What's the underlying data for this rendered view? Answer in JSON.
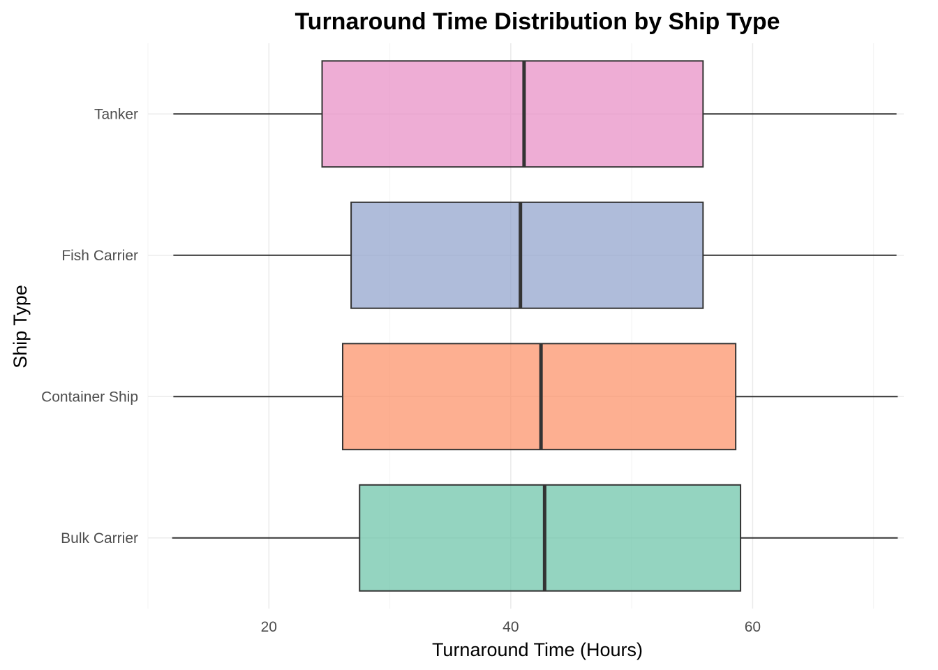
{
  "chart_data": {
    "type": "boxplot",
    "orientation": "horizontal",
    "title": "Turnaround Time Distribution by Ship Type",
    "xlabel": "Turnaround Time (Hours)",
    "ylabel": "Ship Type",
    "xlim": [
      10,
      72.5
    ],
    "x_ticks": [
      20,
      40,
      60
    ],
    "grid": true,
    "legend": "none",
    "categories": [
      "Bulk Carrier",
      "Container Ship",
      "Fish Carrier",
      "Tanker"
    ],
    "series": [
      {
        "category": "Bulk Carrier",
        "min": 12.0,
        "q1": 27.5,
        "median": 42.8,
        "q3": 59.0,
        "max": 72.0,
        "color": "#66c2a5"
      },
      {
        "category": "Container Ship",
        "min": 12.1,
        "q1": 26.1,
        "median": 42.5,
        "q3": 58.6,
        "max": 72.0,
        "color": "#fc8d62"
      },
      {
        "category": "Fish Carrier",
        "min": 12.1,
        "q1": 26.8,
        "median": 40.8,
        "q3": 55.9,
        "max": 71.9,
        "color": "#8da0cb"
      },
      {
        "category": "Tanker",
        "min": 12.1,
        "q1": 24.4,
        "median": 41.1,
        "q3": 55.9,
        "max": 71.9,
        "color": "#e78ac3"
      }
    ]
  }
}
